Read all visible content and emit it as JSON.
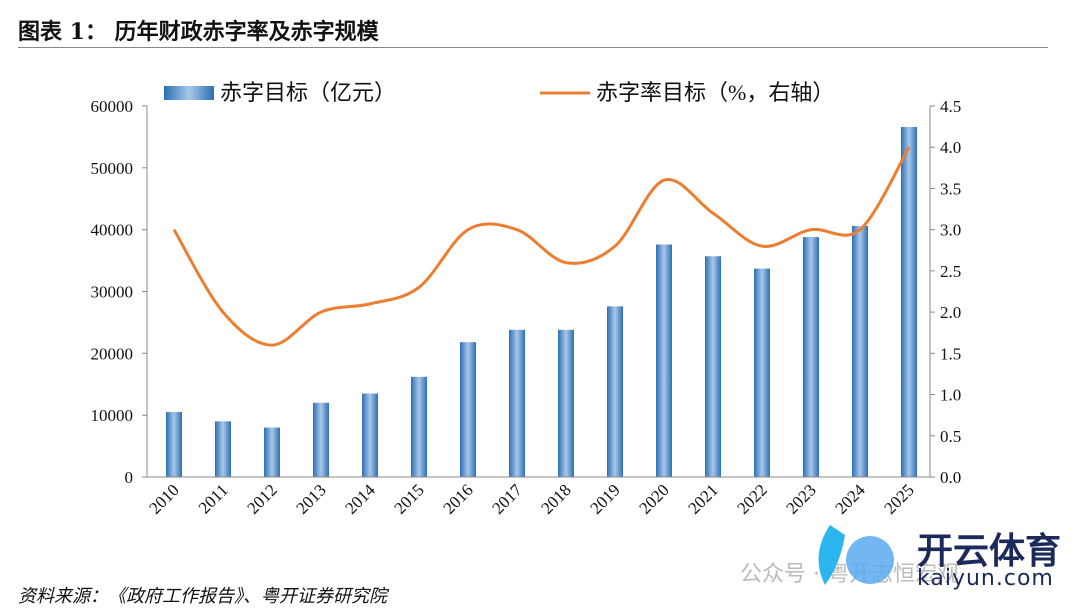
{
  "title": "图表 1：  历年财政赤字率及赤字规模",
  "source": "资料来源：《政府工作报告》、粤开证券研究院",
  "watermark": {
    "wechat": "公众号 · 粤开志恒宏观",
    "logo_cn": "开云体育",
    "logo_en": "kaiyun.com"
  },
  "chart_data": {
    "type": "bar+line",
    "categories": [
      "2010",
      "2011",
      "2012",
      "2013",
      "2014",
      "2015",
      "2016",
      "2017",
      "2018",
      "2019",
      "2020",
      "2021",
      "2022",
      "2023",
      "2024",
      "2025"
    ],
    "series": [
      {
        "name": "赤字目标（亿元）",
        "type": "bar",
        "axis": "left",
        "color": "#2e75b6",
        "values": [
          10500,
          9000,
          8000,
          12000,
          13500,
          16200,
          21800,
          23800,
          23800,
          27600,
          37600,
          35700,
          33700,
          38800,
          40600,
          56600
        ]
      },
      {
        "name": "赤字率目标（%，右轴）",
        "type": "line",
        "axis": "right",
        "color": "#ed7d31",
        "values": [
          3.0,
          2.0,
          1.6,
          2.0,
          2.1,
          2.3,
          3.0,
          3.0,
          2.6,
          2.8,
          3.6,
          3.2,
          2.8,
          3.0,
          3.0,
          4.0
        ]
      }
    ],
    "left_axis": {
      "ylim": [
        0,
        60000
      ],
      "ticks": [
        "0",
        "10000",
        "20000",
        "30000",
        "40000",
        "50000",
        "60000"
      ]
    },
    "right_axis": {
      "ylim": [
        0,
        4.5
      ],
      "ticks": [
        "0.0",
        "0.5",
        "1.0",
        "1.5",
        "2.0",
        "2.5",
        "3.0",
        "3.5",
        "4.0",
        "4.5"
      ]
    },
    "legend": "top",
    "grid": false
  }
}
